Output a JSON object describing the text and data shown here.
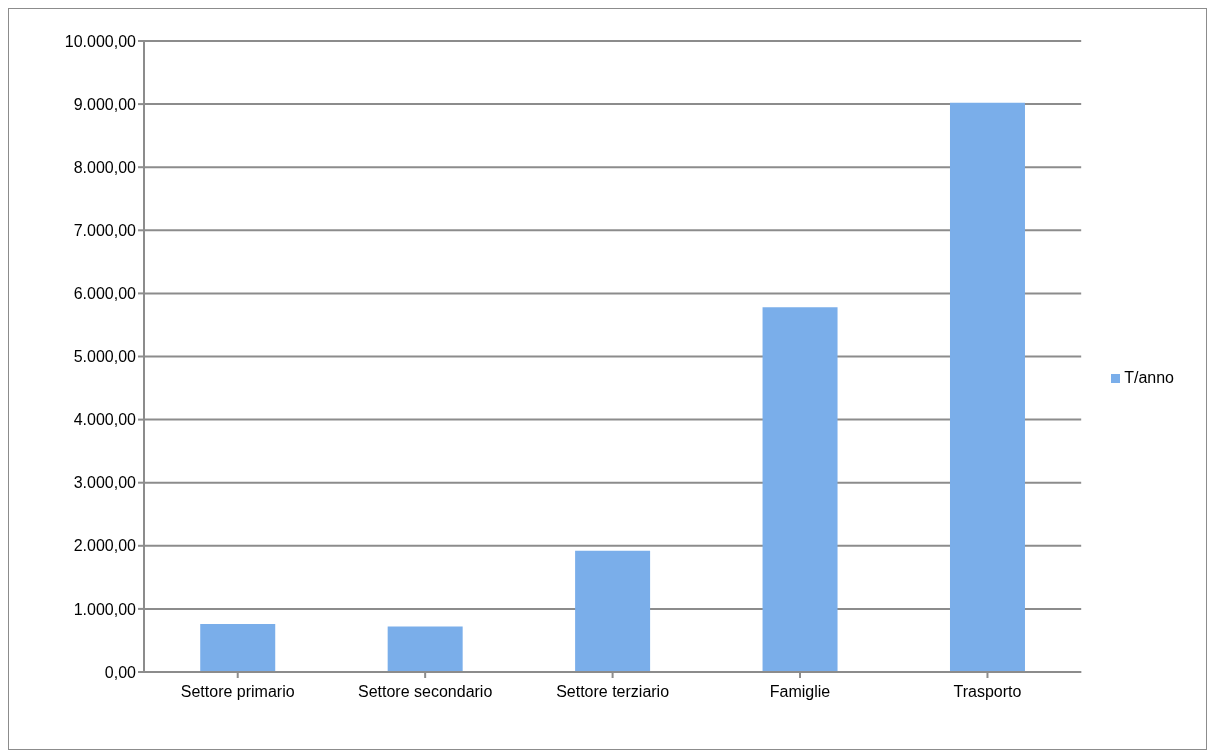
{
  "chart_data": {
    "type": "bar",
    "categories": [
      "Settore primario",
      "Settore secondario",
      "Settore terziario",
      "Famiglie",
      "Trasporto"
    ],
    "series": [
      {
        "name": "T/anno",
        "color": "#7aaeea",
        "values": [
          760,
          720,
          1920,
          5780,
          9020
        ]
      }
    ],
    "ylim": [
      0,
      10000
    ],
    "yticks": [
      {
        "value": 0,
        "label": "0,00"
      },
      {
        "value": 1000,
        "label": "1.000,00"
      },
      {
        "value": 2000,
        "label": "2.000,00"
      },
      {
        "value": 3000,
        "label": "3.000,00"
      },
      {
        "value": 4000,
        "label": "4.000,00"
      },
      {
        "value": 5000,
        "label": "5.000,00"
      },
      {
        "value": 6000,
        "label": "6.000,00"
      },
      {
        "value": 7000,
        "label": "7.000,00"
      },
      {
        "value": 8000,
        "label": "8.000,00"
      },
      {
        "value": 9000,
        "label": "9.000,00"
      },
      {
        "value": 10000,
        "label": "10.000,00"
      }
    ],
    "grid": "y",
    "legend": "right"
  }
}
